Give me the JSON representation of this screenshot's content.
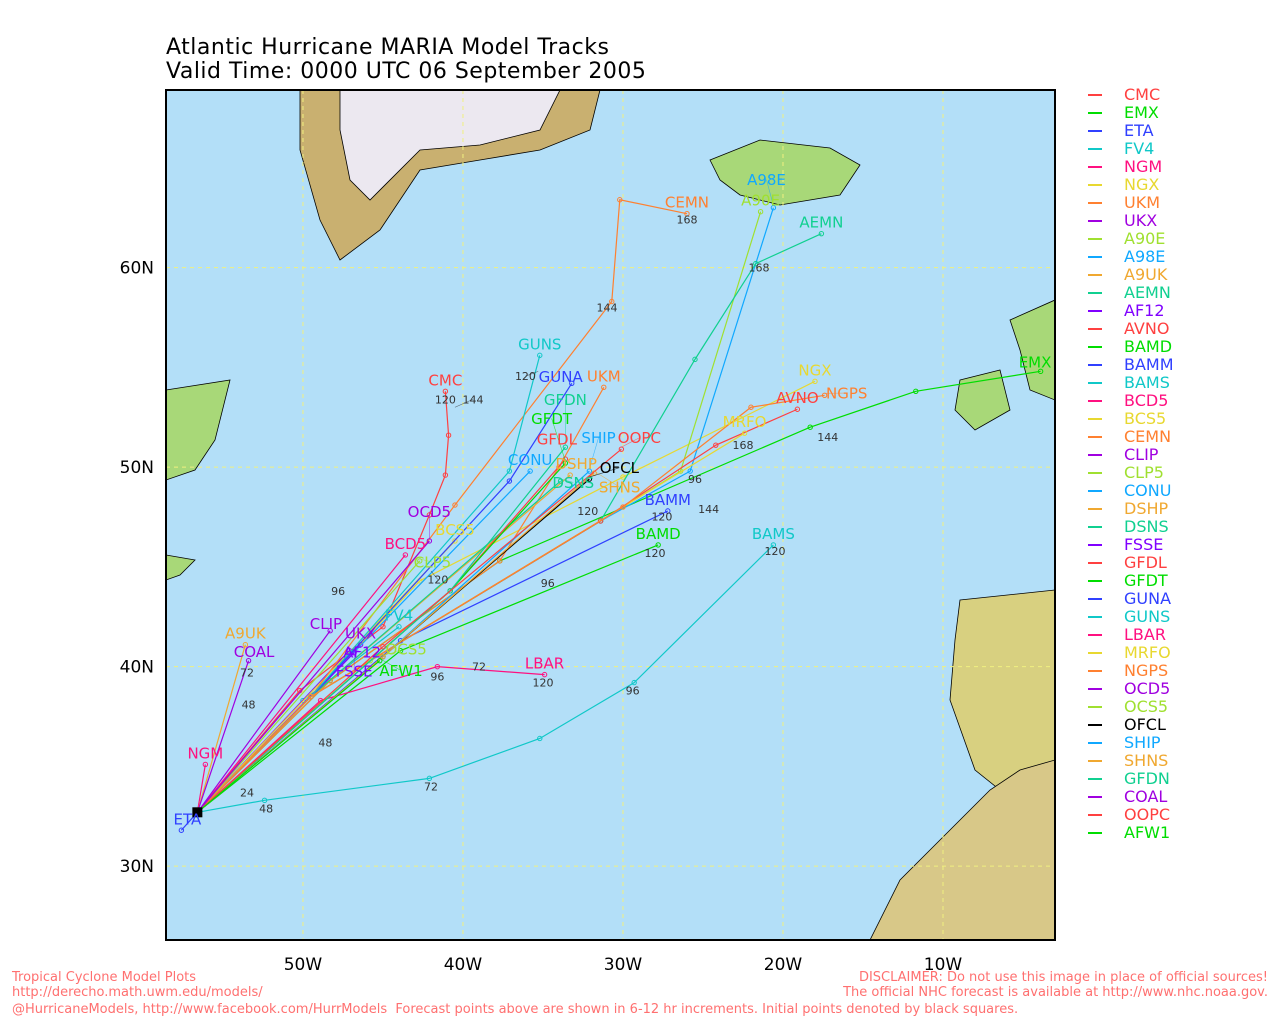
{
  "title": {
    "line1": "Atlantic Hurricane MARIA Model Tracks",
    "line2": "Valid Time: 0000 UTC 06 September 2005"
  },
  "footer": {
    "left1": "Tropical Cyclone Model Plots",
    "left2": "http://derecho.math.uwm.edu/models/",
    "right1": "DISCLAIMER: Do not use this image in place of official sources!",
    "right2": "The official NHC forecast is available at http://www.nhc.noaa.gov.",
    "bottom": "@HurricaneModels, http://www.facebook.com/HurrModels  Forecast points above are shown in 6-12 hr increments. Initial points denoted by black squares."
  },
  "chart_data": {
    "type": "map-tracks",
    "xlim": [
      -58.56,
      -3
    ],
    "ylim": [
      26.3,
      68.9
    ],
    "x_ticks": [
      {
        "v": -50,
        "label": "50W"
      },
      {
        "v": -40,
        "label": "40W"
      },
      {
        "v": -30,
        "label": "30W"
      },
      {
        "v": -20,
        "label": "20W"
      },
      {
        "v": -10,
        "label": "10W"
      }
    ],
    "y_ticks": [
      {
        "v": 60,
        "label": "60N"
      },
      {
        "v": 50,
        "label": "50N"
      },
      {
        "v": 40,
        "label": "40N"
      },
      {
        "v": 30,
        "label": "30N"
      }
    ],
    "grid": true,
    "legend_placement": "right",
    "colors": {
      "ocean": "#b3dff8",
      "land": "#a8d878",
      "ice": "#ece8f0",
      "grid": "#f0f080"
    },
    "start": [
      -56.6,
      32.7
    ],
    "hour_labels": [
      {
        "label": "120",
        "lon": -41.1,
        "lat": 53.2
      },
      {
        "label": "144",
        "lon": -40.5,
        "lat": 53.2
      },
      {
        "label": "168",
        "lon": -26,
        "lat": 62.2
      },
      {
        "label": "168",
        "lon": -21.5,
        "lat": 59.8
      },
      {
        "label": "144",
        "lon": -31,
        "lat": 57.8
      },
      {
        "label": "144",
        "lon": -17.2,
        "lat": 51.3
      },
      {
        "label": "168",
        "lon": -22.5,
        "lat": 50.9
      },
      {
        "label": "120",
        "lon": -35.3,
        "lat": 55.0
      },
      {
        "label": "120",
        "lon": -20.5,
        "lat": 45.6
      },
      {
        "label": "96",
        "lon": -29.4,
        "lat": 38.6
      },
      {
        "label": "72",
        "lon": -42,
        "lat": 33.8
      },
      {
        "label": "48",
        "lon": -52.3,
        "lat": 32.7
      },
      {
        "label": "120",
        "lon": -35,
        "lat": 39.0
      },
      {
        "label": "96",
        "lon": -41.6,
        "lat": 39.3
      },
      {
        "label": "72",
        "lon": -39,
        "lat": 39.8
      },
      {
        "label": "48",
        "lon": -48.6,
        "lat": 36.0
      },
      {
        "label": "120",
        "lon": -28,
        "lat": 45.5
      },
      {
        "label": "96",
        "lon": -34.7,
        "lat": 44.0
      },
      {
        "label": "120",
        "lon": -27.3,
        "lat": 47.1
      },
      {
        "label": "72",
        "lon": -53.5,
        "lat": 39.5
      },
      {
        "label": "24",
        "lon": -53.5,
        "lat": 33.5
      },
      {
        "label": "48",
        "lon": -53.4,
        "lat": 37.9
      },
      {
        "label": "96",
        "lon": -47.8,
        "lat": 43.6
      },
      {
        "label": "120",
        "lon": -42,
        "lat": 45.0
      },
      {
        "label": "144",
        "lon": -25.4,
        "lat": 47.7
      },
      {
        "label": "96",
        "lon": -25.5,
        "lat": 49.2
      },
      {
        "label": "120",
        "lon": -32.2,
        "lat": 47.6
      }
    ],
    "series": [
      {
        "name": "CMC",
        "color": "#ff4040",
        "points": [
          [
            -50.2,
            38.8
          ],
          [
            -45,
            42
          ],
          [
            -42.1,
            47.6
          ],
          [
            -41.1,
            49.6
          ],
          [
            -40.9,
            51.6
          ],
          [
            -41.1,
            53.8
          ]
        ]
      },
      {
        "name": "EMX",
        "color": "#00dd00",
        "points": [
          [
            -48.3,
            39.3
          ],
          [
            -37.7,
            45.3
          ],
          [
            -18.3,
            52.0
          ],
          [
            -11.7,
            53.8
          ],
          [
            -3.9,
            54.8
          ]
        ]
      },
      {
        "name": "ETA",
        "color": "#3040ff",
        "points": [
          [
            -57.6,
            31.8
          ]
        ]
      },
      {
        "name": "FV4",
        "color": "#10c8c8",
        "points": [
          [
            -50,
            38.3
          ],
          [
            -44,
            42
          ]
        ]
      },
      {
        "name": "NGM",
        "color": "#ff1080",
        "points": [
          [
            -56.1,
            35.1
          ]
        ]
      },
      {
        "name": "NGX",
        "color": "#e8d830",
        "points": [
          [
            -49.5,
            38.5
          ],
          [
            -42.7,
            44.3
          ],
          [
            -30,
            49.5
          ],
          [
            -18,
            54.3
          ]
        ]
      },
      {
        "name": "UKM",
        "color": "#ff8030",
        "points": [
          [
            -48.3,
            39.3
          ],
          [
            -37.7,
            45.3
          ],
          [
            -34,
            50
          ],
          [
            -31.2,
            54.0
          ]
        ]
      },
      {
        "name": "UKX",
        "color": "#a000e0",
        "points": [
          [
            -46.4,
            41.1
          ]
        ]
      },
      {
        "name": "A90E",
        "color": "#a0e030",
        "points": [
          [
            -49.5,
            38.5
          ],
          [
            -31.4,
            47.3
          ],
          [
            -26.4,
            49.8
          ],
          [
            -21.4,
            62.8
          ]
        ]
      },
      {
        "name": "A98E",
        "color": "#10a8ff",
        "points": [
          [
            -49.5,
            38.5
          ],
          [
            -31.4,
            47.3
          ],
          [
            -25.8,
            49.8
          ],
          [
            -20.6,
            63.0
          ]
        ]
      },
      {
        "name": "A9UK",
        "color": "#f0a830",
        "points": [
          [
            -53.6,
            41.1
          ]
        ]
      },
      {
        "name": "AEMN",
        "color": "#10d090",
        "points": [
          [
            -49.5,
            38.5
          ],
          [
            -31.4,
            47.3
          ],
          [
            -25.5,
            55.4
          ],
          [
            -21.7,
            60.2
          ],
          [
            -17.6,
            61.7
          ]
        ]
      },
      {
        "name": "AF12",
        "color": "#8000ff",
        "points": [
          [
            -47.1,
            40.8
          ]
        ]
      },
      {
        "name": "AVNO",
        "color": "#ff4040",
        "points": [
          [
            -49.5,
            38.5
          ],
          [
            -31.4,
            47.3
          ],
          [
            -24.2,
            51.1
          ],
          [
            -19.1,
            52.9
          ]
        ]
      },
      {
        "name": "BAMD",
        "color": "#00dd00",
        "points": [
          [
            -43.9,
            40.8
          ],
          [
            -27.8,
            46.1
          ]
        ]
      },
      {
        "name": "BAMM",
        "color": "#3040ff",
        "points": [
          [
            -43.9,
            41.3
          ],
          [
            -27.2,
            47.8
          ]
        ]
      },
      {
        "name": "BAMS",
        "color": "#10c8c8",
        "points": [
          [
            -52.4,
            33.3
          ],
          [
            -42.1,
            34.4
          ],
          [
            -35.2,
            36.4
          ],
          [
            -29.3,
            39.2
          ],
          [
            -20.6,
            46.1
          ]
        ]
      },
      {
        "name": "BCD5",
        "color": "#ff1080",
        "points": [
          [
            -43.6,
            45.6
          ]
        ]
      },
      {
        "name": "BCS5",
        "color": "#e8d830",
        "points": [
          [
            -40.5,
            46.3
          ]
        ]
      },
      {
        "name": "CEMN",
        "color": "#ff8030",
        "points": [
          [
            -49.5,
            38.5
          ],
          [
            -40.5,
            48.1
          ],
          [
            -30.7,
            58.3
          ],
          [
            -30.2,
            63.4
          ],
          [
            -26,
            62.7
          ]
        ]
      },
      {
        "name": "CLIP",
        "color": "#a000e0",
        "points": [
          [
            -48.3,
            41.8
          ]
        ]
      },
      {
        "name": "CLP5",
        "color": "#a0e030",
        "points": [
          [
            -42.7,
            45.3
          ]
        ]
      },
      {
        "name": "CONU",
        "color": "#10a8ff",
        "points": [
          [
            -49.5,
            38.5
          ],
          [
            -35.8,
            49.8
          ]
        ]
      },
      {
        "name": "DSHP",
        "color": "#f0a830",
        "points": [
          [
            -49.5,
            38.5
          ],
          [
            -33.3,
            49.6
          ]
        ]
      },
      {
        "name": "DSNS",
        "color": "#10d090",
        "points": [
          [
            -49.5,
            38.5
          ],
          [
            -33.9,
            49.3
          ]
        ]
      },
      {
        "name": "FSSE",
        "color": "#8000ff",
        "points": [
          [
            -46.8,
            40.7
          ]
        ]
      },
      {
        "name": "GFDL",
        "color": "#ff4040",
        "points": [
          [
            -40.8,
            43.8
          ],
          [
            -33.6,
            50.4
          ]
        ]
      },
      {
        "name": "GFDT",
        "color": "#00dd00",
        "points": [
          [
            -40.8,
            43.8
          ],
          [
            -33.6,
            50.2
          ]
        ]
      },
      {
        "name": "GUNA",
        "color": "#3040ff",
        "points": [
          [
            -49.5,
            38.5
          ],
          [
            -37.1,
            49.3
          ],
          [
            -33.2,
            54.2
          ]
        ]
      },
      {
        "name": "GUNS",
        "color": "#10c8c8",
        "points": [
          [
            -49.5,
            38.5
          ],
          [
            -37.1,
            49.8
          ],
          [
            -35.2,
            55.6
          ]
        ]
      },
      {
        "name": "LBAR",
        "color": "#ff1080",
        "points": [
          [
            -48.9,
            38.3
          ],
          [
            -41.6,
            40.0
          ],
          [
            -34.9,
            39.6
          ]
        ]
      },
      {
        "name": "MRFO",
        "color": "#e8d830",
        "points": [
          [
            -49.5,
            38.5
          ],
          [
            -30,
            48
          ],
          [
            -22.4,
            51.7
          ]
        ]
      },
      {
        "name": "NGPS",
        "color": "#ff8030",
        "points": [
          [
            -49.5,
            38.5
          ],
          [
            -30,
            48
          ],
          [
            -22,
            53
          ],
          [
            -17.4,
            53.6
          ]
        ]
      },
      {
        "name": "OCD5",
        "color": "#a000e0",
        "points": [
          [
            -42.1,
            46.3
          ]
        ]
      },
      {
        "name": "OCS5",
        "color": "#a0e030",
        "points": [
          [
            -45.8,
            40.3
          ]
        ]
      },
      {
        "name": "OFCL",
        "color": "#000000",
        "points": [
          [
            -45,
            40.5
          ],
          [
            -32.1,
            49.4
          ]
        ]
      },
      {
        "name": "SHIP",
        "color": "#10a8ff",
        "points": [
          [
            -45,
            40.5
          ],
          [
            -32.1,
            49.8
          ]
        ]
      },
      {
        "name": "SHNS",
        "color": "#f0a830",
        "points": [
          [
            -45,
            40.5
          ],
          [
            -31.8,
            49.7
          ]
        ]
      },
      {
        "name": "GFDN",
        "color": "#10d090",
        "points": [
          [
            -40.8,
            43.8
          ],
          [
            -33.6,
            51.0
          ]
        ]
      },
      {
        "name": "COAL",
        "color": "#a000e0",
        "points": [
          [
            -53.4,
            40.3
          ]
        ]
      },
      {
        "name": "OOPC",
        "color": "#ff4040",
        "points": [
          [
            -45,
            41
          ],
          [
            -30.1,
            50.9
          ]
        ]
      },
      {
        "name": "AFW1",
        "color": "#00dd00",
        "points": [
          [
            -45.2,
            40.3
          ]
        ]
      }
    ]
  }
}
